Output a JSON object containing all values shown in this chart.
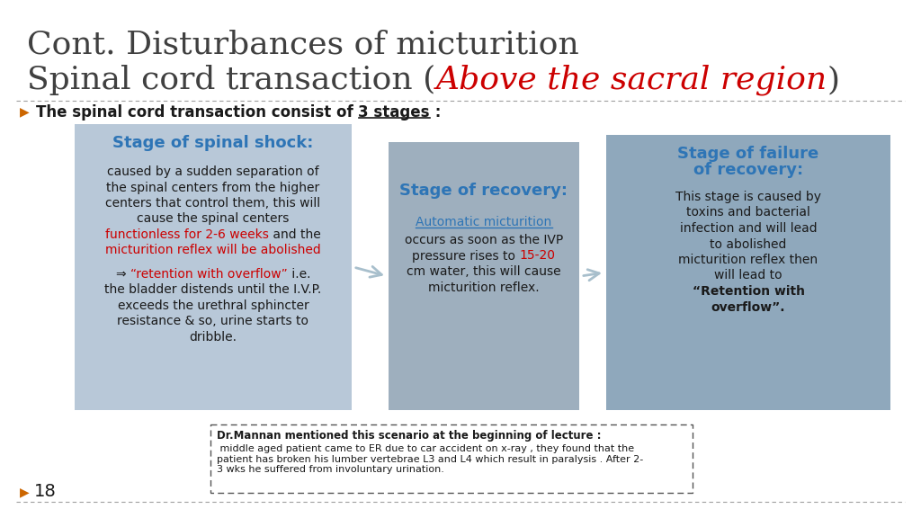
{
  "title_line1": "Cont. Disturbances of micturition",
  "title_line2_black1": "Spinal cord transaction (",
  "title_line2_red": "Above the sacral region",
  "title_line2_black2": ")",
  "subtitle": "The spinal cord transaction consist of ",
  "subtitle_underline": "3 stages",
  "subtitle_end": " :",
  "bg_color": "#ffffff",
  "title_color": "#404040",
  "red_color": "#cc0000",
  "blue_color": "#2E75B6",
  "box_bg_light": "#b8c8d8",
  "box_bg_mid": "#9eafbe",
  "box_bg_dark": "#8fa8bc",
  "arrow_color": "#a8bfcc",
  "box1_title": "Stage of spinal shock:",
  "box2_title": "Stage of recovery:",
  "box2_underline": "Automatic micturition",
  "box3_title_line1": "Stage of failure",
  "box3_title_line2": "of recovery:",
  "footnote_bold": "Dr.Mannan mentioned this scenario at the beginning of lecture :",
  "footnote_text": " middle aged patient came to ER due to car accident on x-ray , they found that the\npatient has broken his lumber vertebrae L3 and L4 which result in paralysis . After 2-\n3 wks he suffered from involuntary urination.",
  "slide_number": "18"
}
